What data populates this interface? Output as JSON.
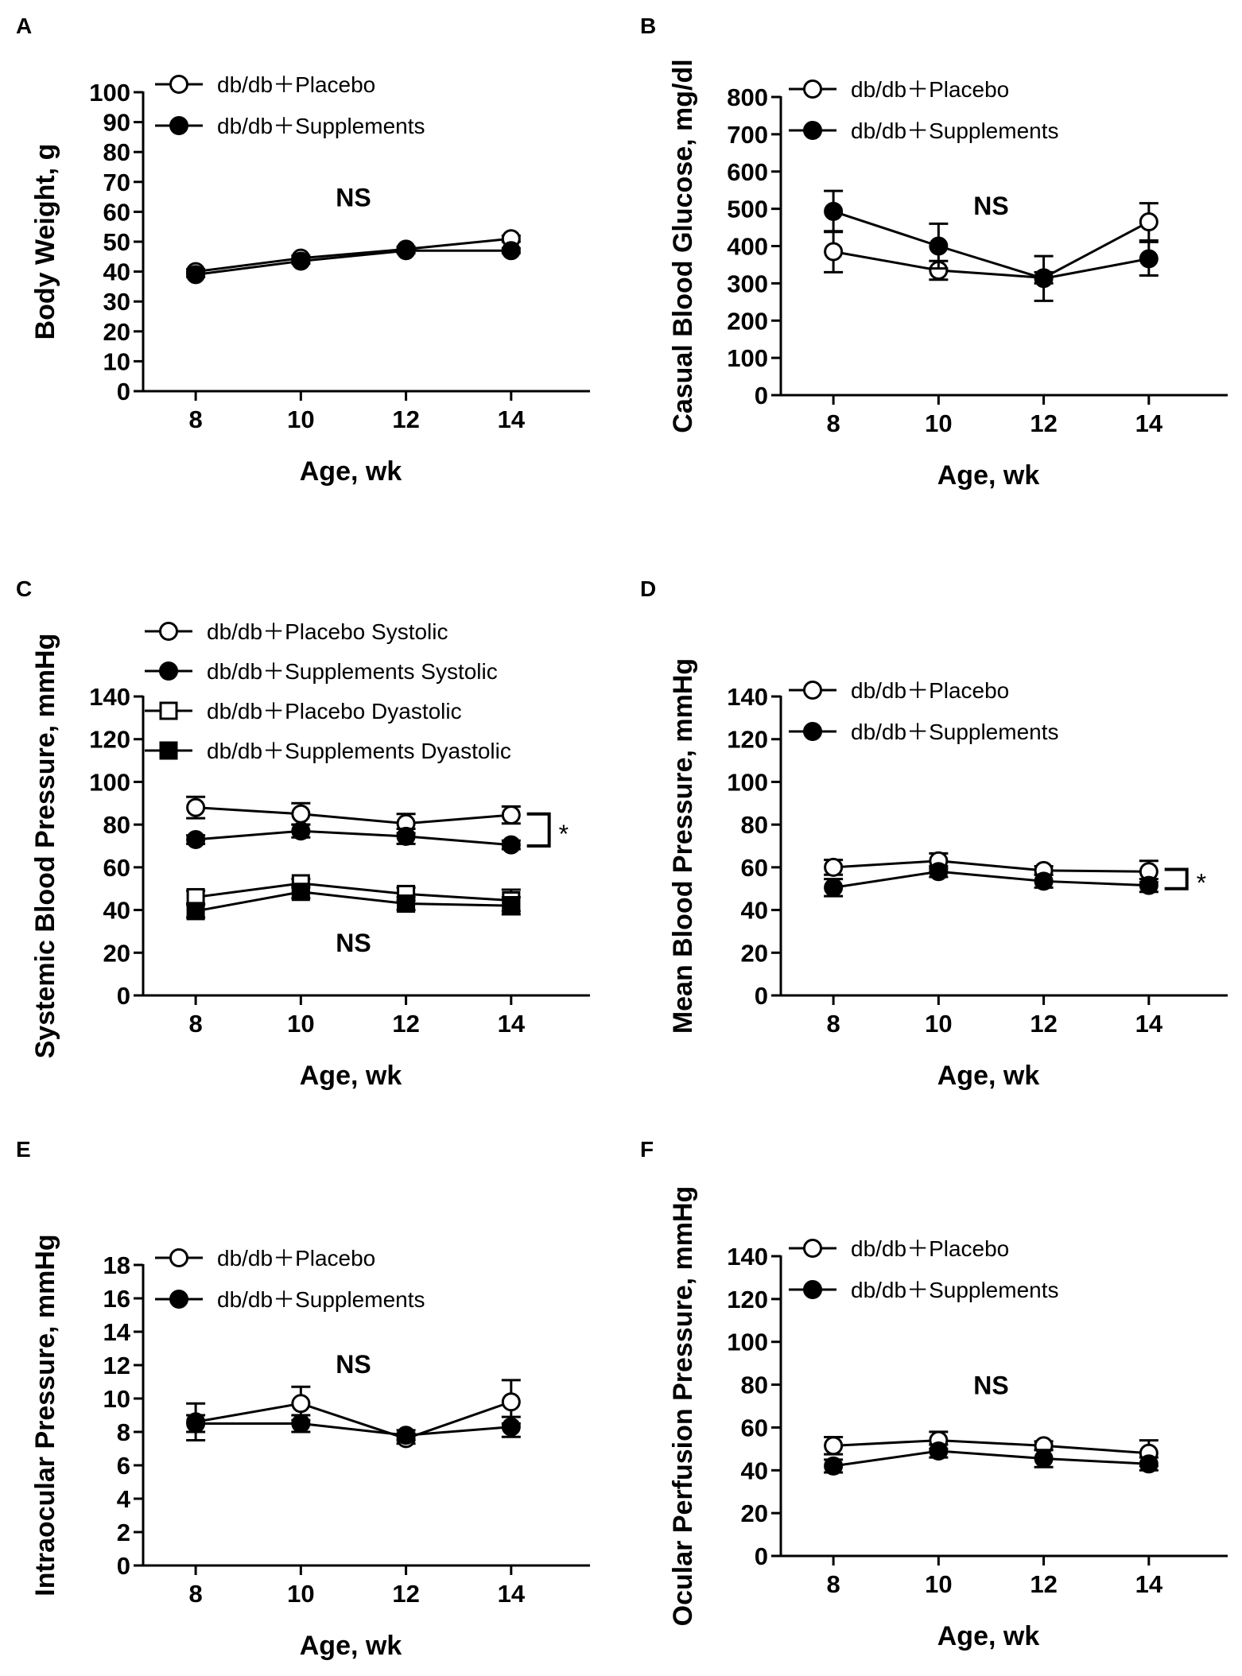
{
  "figure": {
    "background": "#ffffff",
    "ink": "#000000"
  },
  "chart_data": [
    {
      "panel": "A",
      "type": "line",
      "xlabel": "Age, wk",
      "ylabel": "Body Weight, g",
      "x": [
        8,
        10,
        12,
        14
      ],
      "xticks": [
        "8",
        "10",
        "12",
        "14"
      ],
      "xlim": [
        7,
        15.5
      ],
      "ylim": [
        0,
        100
      ],
      "yticks": [
        0,
        10,
        20,
        30,
        40,
        50,
        60,
        70,
        80,
        90,
        100
      ],
      "legend_position": "top-left",
      "annotations": [
        {
          "text": "NS",
          "x": 11,
          "y": 65
        }
      ],
      "brackets": [],
      "series": [
        {
          "name": "db/db＋Placebo",
          "marker": "circle",
          "filled": false,
          "values": [
            40,
            44.5,
            47.5,
            51
          ],
          "err": [
            0.8,
            0.8,
            0.8,
            1
          ]
        },
        {
          "name": "db/db＋Supplements",
          "marker": "circle",
          "filled": true,
          "values": [
            39,
            43.5,
            47,
            47
          ],
          "err": [
            0.8,
            0.8,
            0.8,
            0.8
          ]
        }
      ]
    },
    {
      "panel": "B",
      "type": "line",
      "xlabel": "Age, wk",
      "ylabel": "Casual Blood Glucose, mg/dl",
      "x": [
        8,
        10,
        12,
        14
      ],
      "xticks": [
        "8",
        "10",
        "12",
        "14"
      ],
      "xlim": [
        7,
        15.5
      ],
      "ylim": [
        0,
        800
      ],
      "yticks": [
        0,
        100,
        200,
        300,
        400,
        500,
        600,
        700,
        800
      ],
      "legend_position": "top-left",
      "annotations": [
        {
          "text": "NS",
          "x": 11,
          "y": 510
        }
      ],
      "brackets": [],
      "series": [
        {
          "name": "db/db＋Placebo",
          "marker": "circle",
          "filled": false,
          "values": [
            385,
            335,
            315,
            465
          ],
          "err": [
            55,
            25,
            15,
            50
          ]
        },
        {
          "name": "db/db＋Supplements",
          "marker": "circle",
          "filled": true,
          "values": [
            493,
            400,
            313,
            366
          ],
          "err": [
            55,
            60,
            60,
            45
          ]
        }
      ]
    },
    {
      "panel": "C",
      "type": "line",
      "xlabel": "Age, wk",
      "ylabel": "Systemic Blood Pressure, mmHg",
      "x": [
        8,
        10,
        12,
        14
      ],
      "xticks": [
        "8",
        "10",
        "12",
        "14"
      ],
      "xlim": [
        7,
        15.5
      ],
      "ylim": [
        0,
        140
      ],
      "yticks": [
        0,
        20,
        40,
        60,
        80,
        100,
        120,
        140
      ],
      "legend_position": "top-left",
      "annotations": [
        {
          "text": "NS",
          "x": 11,
          "y": 25
        }
      ],
      "brackets": [
        {
          "text": "*",
          "x": 14.3,
          "y_top": 85,
          "y_bottom": 70
        }
      ],
      "series": [
        {
          "name": "db/db＋Placebo Systolic",
          "marker": "circle",
          "filled": false,
          "values": [
            88,
            85,
            80.5,
            84.5
          ],
          "err": [
            5,
            5,
            4.5,
            4
          ]
        },
        {
          "name": "db/db＋Supplements Systolic",
          "marker": "circle",
          "filled": true,
          "values": [
            73,
            77,
            74.5,
            70.5
          ],
          "err": [
            2,
            3,
            3.5,
            2
          ]
        },
        {
          "name": "db/db＋Placebo Dyastolic",
          "marker": "square",
          "filled": false,
          "values": [
            46,
            52.5,
            47.5,
            44.5
          ],
          "err": [
            3,
            2,
            3,
            5
          ]
        },
        {
          "name": "db/db＋Supplements Dyastolic",
          "marker": "square",
          "filled": true,
          "values": [
            39.5,
            48.5,
            43,
            42
          ],
          "err": [
            3,
            3,
            3,
            4
          ]
        }
      ]
    },
    {
      "panel": "D",
      "type": "line",
      "xlabel": "Age, wk",
      "ylabel": "Mean Blood Pressure, mmHg",
      "x": [
        8,
        10,
        12,
        14
      ],
      "xticks": [
        "8",
        "10",
        "12",
        "14"
      ],
      "xlim": [
        7,
        15.5
      ],
      "ylim": [
        0,
        140
      ],
      "yticks": [
        0,
        20,
        40,
        60,
        80,
        100,
        120,
        140
      ],
      "legend_position": "top-left",
      "annotations": [],
      "brackets": [
        {
          "text": "*",
          "x": 14.3,
          "y_top": 59,
          "y_bottom": 50
        }
      ],
      "series": [
        {
          "name": "db/db＋Placebo",
          "marker": "circle",
          "filled": false,
          "values": [
            60,
            63,
            58.5,
            58
          ],
          "err": [
            3.5,
            3.5,
            2,
            5
          ]
        },
        {
          "name": "db/db＋Supplements",
          "marker": "circle",
          "filled": true,
          "values": [
            50.5,
            58,
            53.5,
            51.5
          ],
          "err": [
            4,
            2.5,
            3,
            3
          ]
        }
      ]
    },
    {
      "panel": "E",
      "type": "line",
      "xlabel": "Age, wk",
      "ylabel": "Intraocular Pressure, mmHg",
      "x": [
        8,
        10,
        12,
        14
      ],
      "xticks": [
        "8",
        "10",
        "12",
        "14"
      ],
      "xlim": [
        7,
        15.5
      ],
      "ylim": [
        0,
        18
      ],
      "yticks": [
        0,
        2,
        4,
        6,
        8,
        10,
        12,
        14,
        16,
        18
      ],
      "legend_position": "top-left",
      "annotations": [
        {
          "text": "NS",
          "x": 11,
          "y": 12.1
        }
      ],
      "brackets": [],
      "series": [
        {
          "name": "db/db＋Placebo",
          "marker": "circle",
          "filled": false,
          "values": [
            8.6,
            9.7,
            7.6,
            9.8
          ],
          "err": [
            1.1,
            1,
            0.3,
            1.3
          ]
        },
        {
          "name": "db/db＋Supplements",
          "marker": "circle",
          "filled": true,
          "values": [
            8.5,
            8.5,
            7.8,
            8.3
          ],
          "err": [
            0.5,
            0.5,
            0.3,
            0.6
          ]
        }
      ]
    },
    {
      "panel": "F",
      "type": "line",
      "xlabel": "Age, wk",
      "ylabel": "Ocular Perfusion Pressure, mmHg",
      "x": [
        8,
        10,
        12,
        14
      ],
      "xticks": [
        "8",
        "10",
        "12",
        "14"
      ],
      "xlim": [
        7,
        15.5
      ],
      "ylim": [
        0,
        140
      ],
      "yticks": [
        0,
        20,
        40,
        60,
        80,
        100,
        120,
        140
      ],
      "legend_position": "top-left",
      "annotations": [
        {
          "text": "NS",
          "x": 11,
          "y": 80
        }
      ],
      "brackets": [],
      "series": [
        {
          "name": "db/db＋Placebo",
          "marker": "circle",
          "filled": false,
          "values": [
            51.5,
            54,
            51.5,
            48
          ],
          "err": [
            4,
            4,
            2,
            6
          ]
        },
        {
          "name": "db/db＋Supplements",
          "marker": "circle",
          "filled": true,
          "values": [
            42,
            49,
            45.5,
            43
          ],
          "err": [
            3,
            3,
            4,
            3
          ]
        }
      ]
    }
  ]
}
